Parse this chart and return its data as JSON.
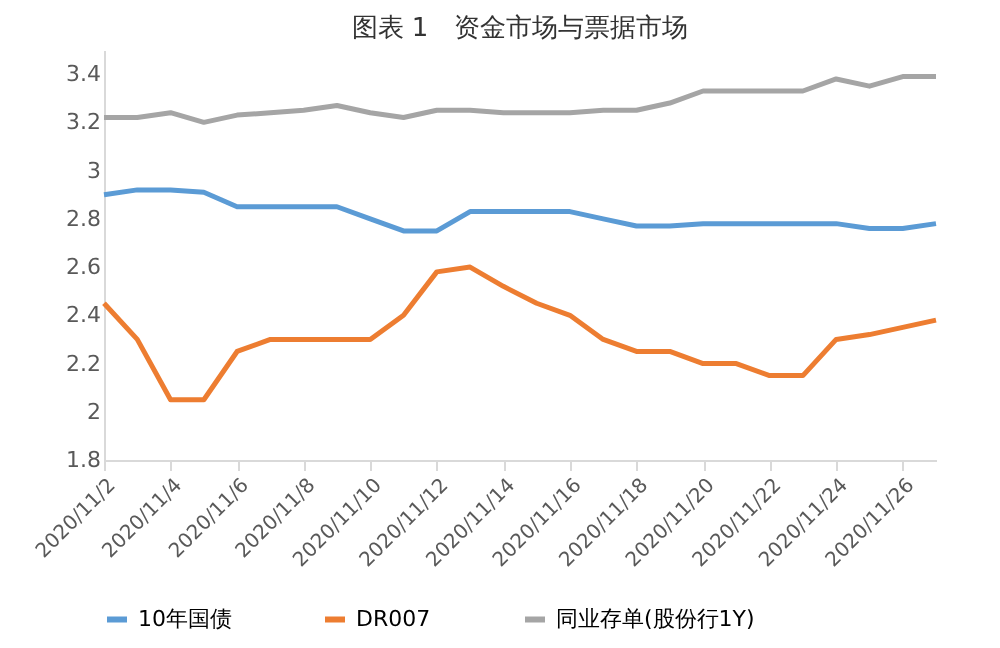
{
  "chart_data": {
    "type": "line",
    "title": "图表 1　资金市场与票据市场",
    "x": [
      "2020-11-02",
      "2020-11-03",
      "2020-11-04",
      "2020-11-05",
      "2020-11-06",
      "2020-11-07",
      "2020-11-08",
      "2020-11-09",
      "2020-11-10",
      "2020-11-11",
      "2020-11-12",
      "2020-11-13",
      "2020-11-14",
      "2020-11-15",
      "2020-11-16",
      "2020-11-17",
      "2020-11-18",
      "2020-11-19",
      "2020-11-20",
      "2020-11-21",
      "2020-11-22",
      "2020-11-23",
      "2020-11-24",
      "2020-11-25",
      "2020-11-26",
      "2020-11-27"
    ],
    "series": [
      {
        "name": "10年国债",
        "color": "#5b9bd5",
        "values": [
          2.9,
          2.92,
          2.92,
          2.91,
          2.85,
          2.85,
          2.85,
          2.85,
          2.8,
          2.75,
          2.75,
          2.83,
          2.83,
          2.83,
          2.83,
          2.8,
          2.77,
          2.77,
          2.78,
          2.78,
          2.78,
          2.78,
          2.78,
          2.76,
          2.76,
          2.78
        ]
      },
      {
        "name": "DR007",
        "color": "#ed7d31",
        "values": [
          2.45,
          2.3,
          2.05,
          2.05,
          2.25,
          2.3,
          2.3,
          2.3,
          2.3,
          2.4,
          2.58,
          2.6,
          2.52,
          2.45,
          2.4,
          2.3,
          2.25,
          2.25,
          2.2,
          2.2,
          2.15,
          2.15,
          2.3,
          2.32,
          2.35,
          2.38
        ]
      },
      {
        "name": "同业存单(股份行1Y)",
        "color": "#a5a5a5",
        "values": [
          3.22,
          3.22,
          3.24,
          3.2,
          3.23,
          3.24,
          3.25,
          3.27,
          3.24,
          3.22,
          3.25,
          3.25,
          3.24,
          3.24,
          3.24,
          3.25,
          3.25,
          3.28,
          3.33,
          3.33,
          3.33,
          3.33,
          3.38,
          3.35,
          3.39,
          3.39
        ]
      }
    ],
    "xlim": [
      "2020-11-02",
      "2020-11-27"
    ],
    "xticks": [
      {
        "value": "2020-11-02",
        "label": "2020/11/2"
      },
      {
        "value": "2020-11-04",
        "label": "2020/11/4"
      },
      {
        "value": "2020-11-06",
        "label": "2020/11/6"
      },
      {
        "value": "2020-11-08",
        "label": "2020/11/8"
      },
      {
        "value": "2020-11-10",
        "label": "2020/11/10"
      },
      {
        "value": "2020-11-12",
        "label": "2020/11/12"
      },
      {
        "value": "2020-11-14",
        "label": "2020/11/14"
      },
      {
        "value": "2020-11-16",
        "label": "2020/11/16"
      },
      {
        "value": "2020-11-18",
        "label": "2020/11/18"
      },
      {
        "value": "2020-11-20",
        "label": "2020/11/20"
      },
      {
        "value": "2020-11-22",
        "label": "2020/11/22"
      },
      {
        "value": "2020-11-24",
        "label": "2020/11/24"
      },
      {
        "value": "2020-11-26",
        "label": "2020/11/26"
      }
    ],
    "ylim": [
      1.8,
      3.5
    ],
    "yticks": [
      1.8,
      2,
      2.2,
      2.4,
      2.6,
      2.8,
      3,
      3.2,
      3.4
    ],
    "grid": false,
    "legend": "bottom",
    "marker": "none",
    "line_style": "solid"
  }
}
